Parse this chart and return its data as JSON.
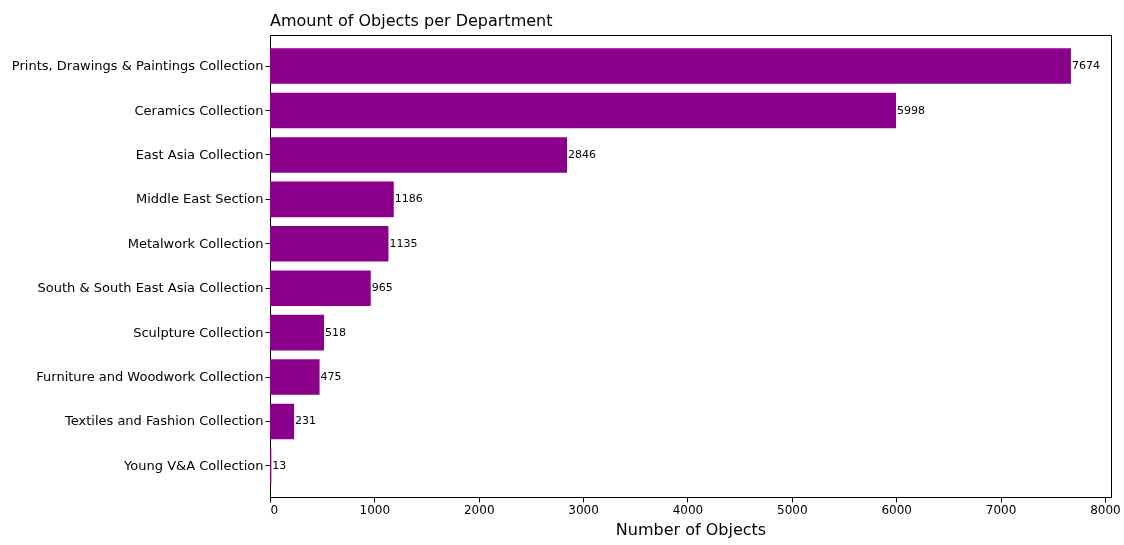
{
  "chart_data": {
    "type": "bar",
    "orientation": "horizontal",
    "title": "Amount of Objects per Department",
    "xlabel": "Number of Objects",
    "categories": [
      "Prints, Drawings & Paintings Collection",
      "Ceramics Collection",
      "East Asia Collection",
      "Middle East Section",
      "Metalwork Collection",
      "South & South East Asia Collection",
      "Sculpture Collection",
      "Furniture and Woodwork Collection",
      "Textiles and Fashion Collection",
      "Young V&A Collection"
    ],
    "values": [
      7674,
      5998,
      2846,
      1186,
      1135,
      965,
      518,
      475,
      231,
      13
    ],
    "color": "#8b008b",
    "xlim": [
      0,
      8058
    ],
    "xticks": [
      0,
      1000,
      2000,
      3000,
      4000,
      5000,
      6000,
      7000,
      8000
    ],
    "grid": false,
    "data_labels": true
  }
}
